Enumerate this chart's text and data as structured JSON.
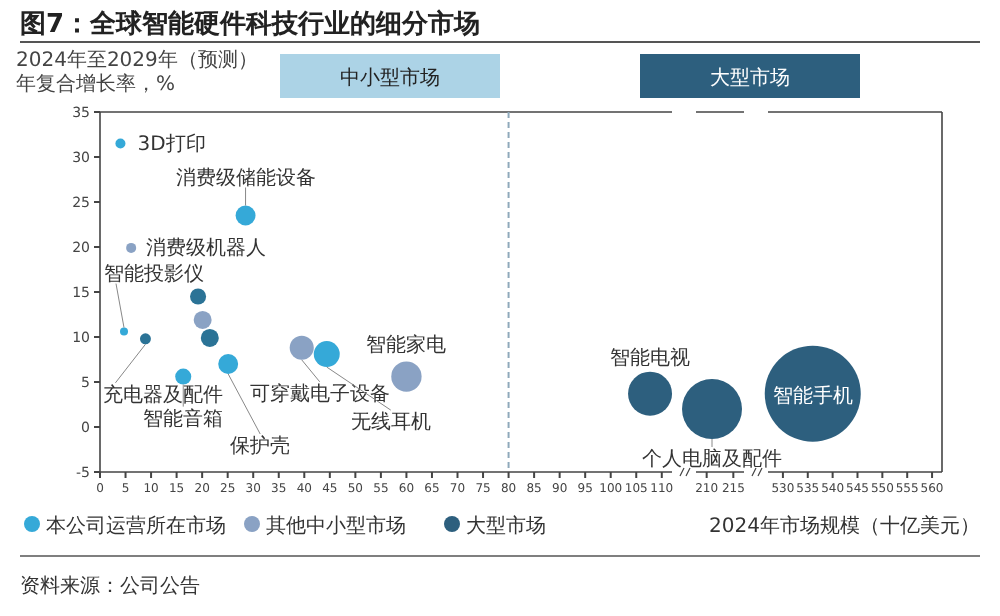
{
  "chart_data": [
    {
      "type": "bubble",
      "title": "图7：全球智能硬件科技行业的细分市场",
      "xlabel": "2024年市场规模（十亿美元）",
      "ylabel": "2024年至2029年（预测）年复合增长率，%",
      "xlim": [
        0,
        112
      ],
      "xticks": [
        0,
        5,
        10,
        15,
        20,
        25,
        30,
        35,
        40,
        45,
        50,
        55,
        60,
        65,
        70,
        75,
        80,
        85,
        90,
        95,
        100,
        105,
        110
      ],
      "ylim": [
        -5,
        35
      ],
      "yticks": [
        -5,
        0,
        5,
        10,
        15,
        20,
        25,
        30,
        35
      ],
      "legend": "bottom",
      "series": [
        {
          "name": "本公司运营所在市场",
          "color": "#35a9d8",
          "x": [
            4,
            28.5,
            4.7,
            44.4,
            25.1,
            16.3
          ],
          "values": [
            31.5,
            23.5,
            10.6,
            8.1,
            7,
            5.6
          ],
          "sizes": [
            0.052,
            0.205,
            0.033,
            0.348,
            0.205,
            0.133
          ]
        },
        {
          "name": "其他中小型市场",
          "color": "#8aa2c4",
          "x": [
            6.1,
            20.1,
            39.5,
            60
          ],
          "values": [
            19.9,
            11.9,
            8.8,
            5.6
          ],
          "sizes": [
            0.052,
            0.167,
            0.3,
            0.476
          ]
        },
        {
          "color": "#2b7396",
          "x": [
            19.2,
            21.5,
            8.9
          ],
          "values": [
            14.5,
            9.9,
            9.8
          ],
          "sizes": [
            0.133,
            0.167,
            0.062
          ]
        },
        {
          "name": "大型市场",
          "color": "#2d5f7e",
          "x": [
            107.7
          ],
          "values": [
            3.7
          ],
          "sizes": [
            1
          ]
        }
      ],
      "ref_lines": [
        {
          "axis": "x",
          "value": 80,
          "color": "#8fa9bb",
          "line_style": "dashed"
        }
      ],
      "annotations": [
        "中小型市场",
        "大型市场",
        {
          "text": "3D打印",
          "x": 4,
          "y": 31.5
        },
        {
          "text": "消费级储能设备",
          "x": 28.5,
          "y": 23.5
        },
        {
          "text": "消费级机器人",
          "x": 6.1,
          "y": 19.9
        },
        {
          "text": "智能投影仪",
          "x": 4.7,
          "y": 10.6
        },
        {
          "text": "充电器及配件",
          "x": 8.9,
          "y": 9.8
        },
        {
          "text": "可穿戴电子设备",
          "x": 39.5,
          "y": 8.8
        },
        {
          "text": "无线耳机",
          "x": 44.4,
          "y": 8.1
        },
        {
          "text": "保护壳",
          "x": 25.1,
          "y": 7
        },
        {
          "text": "智能音箱",
          "x": 16.3,
          "y": 5.6
        },
        {
          "text": "智能家电",
          "x": 60,
          "y": 5.6
        },
        {
          "text": "智能电视",
          "x": 107.7,
          "y": 3.7
        },
        "资料来源：公司公告"
      ]
    },
    {
      "type": "bubble",
      "xlim": [
        208,
        217
      ],
      "xticks": [
        210,
        215
      ],
      "ylim": [
        -5,
        35
      ],
      "tick_labels": "x",
      "series": [
        {
          "color": "#2d5f7e",
          "x": [
            211
          ],
          "values": [
            2
          ],
          "sizes": [
            1
          ]
        }
      ],
      "annotations": [
        {
          "text": "个人电脑及配件",
          "x": 211,
          "y": 2
        }
      ]
    },
    {
      "type": "bubble",
      "xlim": [
        527,
        562
      ],
      "xticks": [
        530,
        535,
        540,
        545,
        550,
        555,
        560
      ],
      "ylim": [
        -5,
        35
      ],
      "tick_labels": "x",
      "series": [
        {
          "color": "#2d5f7e",
          "x": [
            536
          ],
          "values": [
            3.7
          ],
          "sizes": [
            1
          ]
        }
      ],
      "annotations": [
        {
          "text": "智能手机",
          "x": 536,
          "y": 3.7
        }
      ]
    }
  ]
}
